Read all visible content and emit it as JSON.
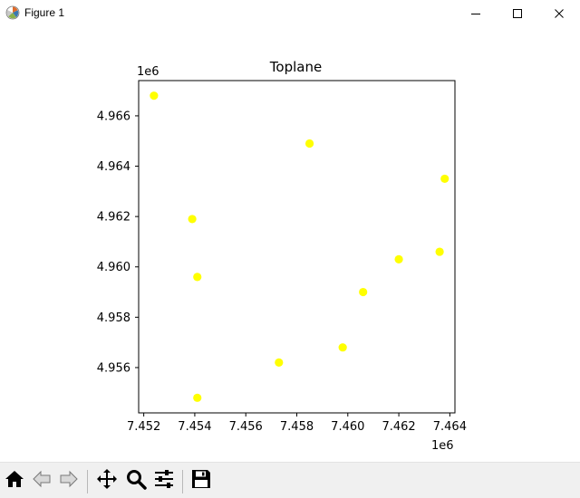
{
  "window": {
    "title": "Figure 1",
    "icons": [
      "matplotlib-icon",
      "minimize-icon",
      "maximize-icon",
      "close-icon"
    ]
  },
  "toolbar": {
    "buttons": [
      "home-icon",
      "back-icon",
      "forward-icon",
      "pan-icon",
      "zoom-icon",
      "configure-subplots-icon",
      "save-icon"
    ]
  },
  "chart_data": {
    "type": "scatter",
    "title": "Toplane",
    "xlabel": "",
    "ylabel": "",
    "x_offset_label": "1e6",
    "y_offset_label": "1e6",
    "xlim": [
      7.4518,
      7.4642
    ],
    "ylim": [
      4.9542,
      4.9674
    ],
    "xticks": [
      "7.452",
      "7.454",
      "7.456",
      "7.458",
      "7.460",
      "7.462",
      "7.464"
    ],
    "xtick_values": [
      7.452,
      7.454,
      7.456,
      7.458,
      7.46,
      7.462,
      7.464
    ],
    "yticks": [
      "4.956",
      "4.958",
      "4.960",
      "4.962",
      "4.964",
      "4.966"
    ],
    "ytick_values": [
      4.956,
      4.958,
      4.96,
      4.962,
      4.964,
      4.966
    ],
    "grid": false,
    "marker_color": "#ffff00",
    "series": [
      {
        "points": [
          [
            7.4524,
            4.9668
          ],
          [
            7.4585,
            4.9649
          ],
          [
            7.4638,
            4.9635
          ],
          [
            7.4539,
            4.9619
          ],
          [
            7.4541,
            4.9596
          ],
          [
            7.4636,
            4.9606
          ],
          [
            7.462,
            4.9603
          ],
          [
            7.4606,
            4.959
          ],
          [
            7.4598,
            4.9568
          ],
          [
            7.4573,
            4.9562
          ],
          [
            7.4541,
            4.9548
          ]
        ]
      }
    ]
  }
}
